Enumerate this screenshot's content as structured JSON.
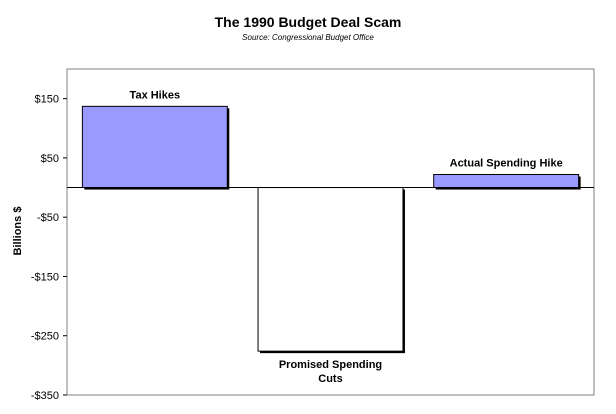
{
  "chart_data": {
    "type": "bar",
    "title": "The 1990 Budget Deal Scam",
    "subtitle": "Source: Congressional Budget Office",
    "xlabel": "",
    "ylabel": "Billions $",
    "categories": [
      "Tax Hikes",
      "Promised Spending Cuts",
      "Actual Spending Hike"
    ],
    "values": [
      137,
      -276,
      22
    ],
    "ylim": [
      -350,
      200
    ],
    "yticks": [
      150,
      50,
      -50,
      -150,
      -250,
      -350
    ],
    "ytick_labels": [
      "$150",
      "$50",
      "-$50",
      "-$150",
      "-$250",
      "-$350"
    ],
    "grid": false,
    "legend": "none",
    "colors": {
      "positive_fill": "#9999ff",
      "negative_fill": "#ffffff",
      "outline": "#000000"
    }
  }
}
